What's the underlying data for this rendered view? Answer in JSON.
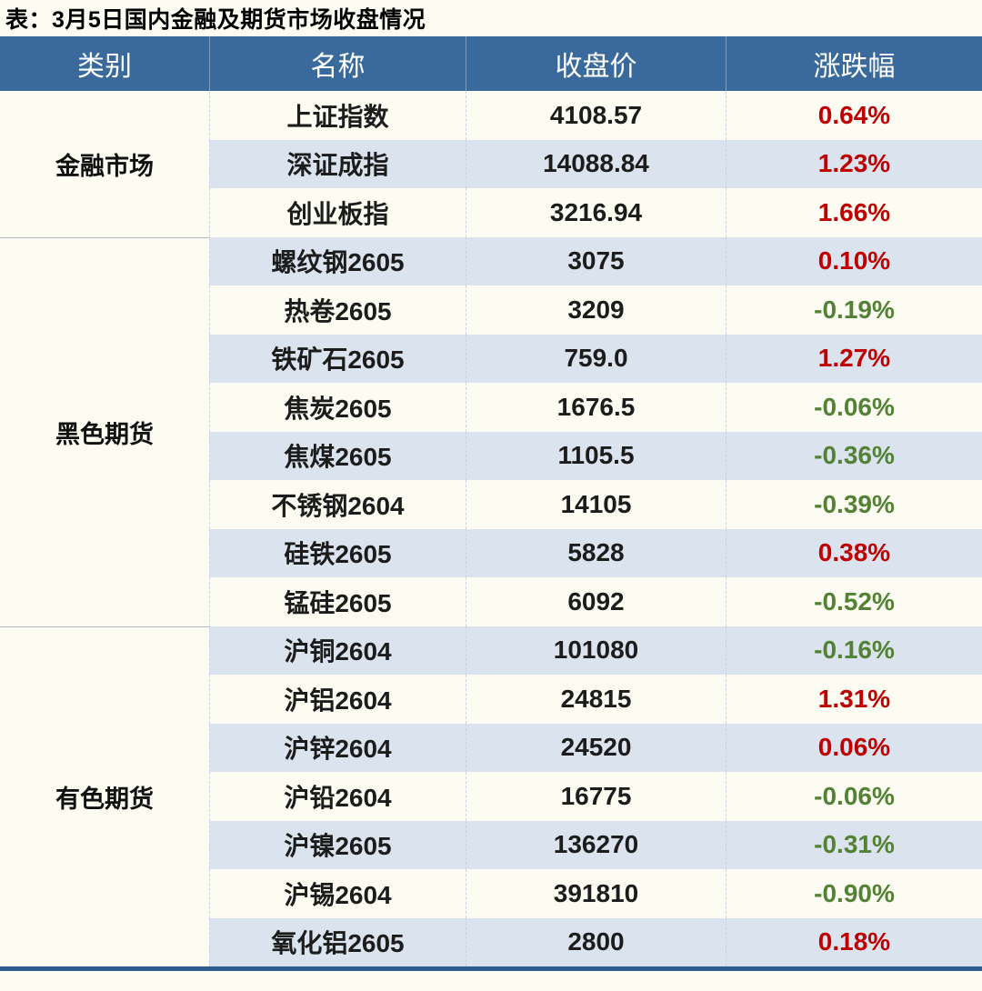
{
  "title": "表：3月5日国内金融及期货市场收盘情况",
  "colors": {
    "background": "#fdfcf2",
    "header_bg": "#3a6a9b",
    "header_line": "#7b9cc1",
    "stripe_blue": "#dbe3ee",
    "up_red": "#c00000",
    "down_green": "#538135",
    "bottom_border": "#2e5c90",
    "group_line": "#b5bac1"
  },
  "table": {
    "headers": [
      "类别",
      "名称",
      "收盘价",
      "涨跌幅"
    ],
    "groups": [
      {
        "category": "金融市场",
        "rows": [
          {
            "name": "上证指数",
            "close": "4108.57",
            "change": "0.64%",
            "direction": "up"
          },
          {
            "name": "深证成指",
            "close": "14088.84",
            "change": "1.23%",
            "direction": "up"
          },
          {
            "name": "创业板指",
            "close": "3216.94",
            "change": "1.66%",
            "direction": "up"
          }
        ]
      },
      {
        "category": "黑色期货",
        "rows": [
          {
            "name": "螺纹钢2605",
            "close": "3075",
            "change": "0.10%",
            "direction": "up"
          },
          {
            "name": "热卷2605",
            "close": "3209",
            "change": "-0.19%",
            "direction": "down"
          },
          {
            "name": "铁矿石2605",
            "close": "759.0",
            "change": "1.27%",
            "direction": "up"
          },
          {
            "name": "焦炭2605",
            "close": "1676.5",
            "change": "-0.06%",
            "direction": "down"
          },
          {
            "name": "焦煤2605",
            "close": "1105.5",
            "change": "-0.36%",
            "direction": "down"
          },
          {
            "name": "不锈钢2604",
            "close": "14105",
            "change": "-0.39%",
            "direction": "down"
          },
          {
            "name": "硅铁2605",
            "close": "5828",
            "change": "0.38%",
            "direction": "up"
          },
          {
            "name": "锰硅2605",
            "close": "6092",
            "change": "-0.52%",
            "direction": "down"
          }
        ]
      },
      {
        "category": "有色期货",
        "rows": [
          {
            "name": "沪铜2604",
            "close": "101080",
            "change": "-0.16%",
            "direction": "down"
          },
          {
            "name": "沪铝2604",
            "close": "24815",
            "change": "1.31%",
            "direction": "up"
          },
          {
            "name": "沪锌2604",
            "close": "24520",
            "change": "0.06%",
            "direction": "up"
          },
          {
            "name": "沪铅2604",
            "close": "16775",
            "change": "-0.06%",
            "direction": "down"
          },
          {
            "name": "沪镍2605",
            "close": "136270",
            "change": "-0.31%",
            "direction": "down"
          },
          {
            "name": "沪锡2604",
            "close": "391810",
            "change": "-0.90%",
            "direction": "down"
          },
          {
            "name": "氧化铝2605",
            "close": "2800",
            "change": "0.18%",
            "direction": "up"
          }
        ]
      }
    ]
  },
  "chart_data": {
    "type": "table",
    "title": "表：3月5日国内金融及期货市场收盘情况",
    "columns": [
      "类别",
      "名称",
      "收盘价",
      "涨跌幅"
    ],
    "rows": [
      [
        "金融市场",
        "上证指数",
        4108.57,
        "0.64%"
      ],
      [
        "金融市场",
        "深证成指",
        14088.84,
        "1.23%"
      ],
      [
        "金融市场",
        "创业板指",
        3216.94,
        "1.66%"
      ],
      [
        "黑色期货",
        "螺纹钢2605",
        3075,
        "0.10%"
      ],
      [
        "黑色期货",
        "热卷2605",
        3209,
        "-0.19%"
      ],
      [
        "黑色期货",
        "铁矿石2605",
        759.0,
        "1.27%"
      ],
      [
        "黑色期货",
        "焦炭2605",
        1676.5,
        "-0.06%"
      ],
      [
        "黑色期货",
        "焦煤2605",
        1105.5,
        "-0.36%"
      ],
      [
        "黑色期货",
        "不锈钢2604",
        14105,
        "-0.39%"
      ],
      [
        "黑色期货",
        "硅铁2605",
        5828,
        "0.38%"
      ],
      [
        "黑色期货",
        "锰硅2605",
        6092,
        "-0.52%"
      ],
      [
        "有色期货",
        "沪铜2604",
        101080,
        "-0.16%"
      ],
      [
        "有色期货",
        "沪铝2604",
        24815,
        "1.31%"
      ],
      [
        "有色期货",
        "沪锌2604",
        24520,
        "0.06%"
      ],
      [
        "有色期货",
        "沪铅2604",
        16775,
        "-0.06%"
      ],
      [
        "有色期货",
        "沪镍2605",
        136270,
        "-0.31%"
      ],
      [
        "有色期货",
        "沪锡2604",
        391810,
        "-0.90%"
      ],
      [
        "有色期货",
        "氧化铝2605",
        2800,
        "0.18%"
      ]
    ],
    "legend_notes": "red = rise, green = fall"
  }
}
